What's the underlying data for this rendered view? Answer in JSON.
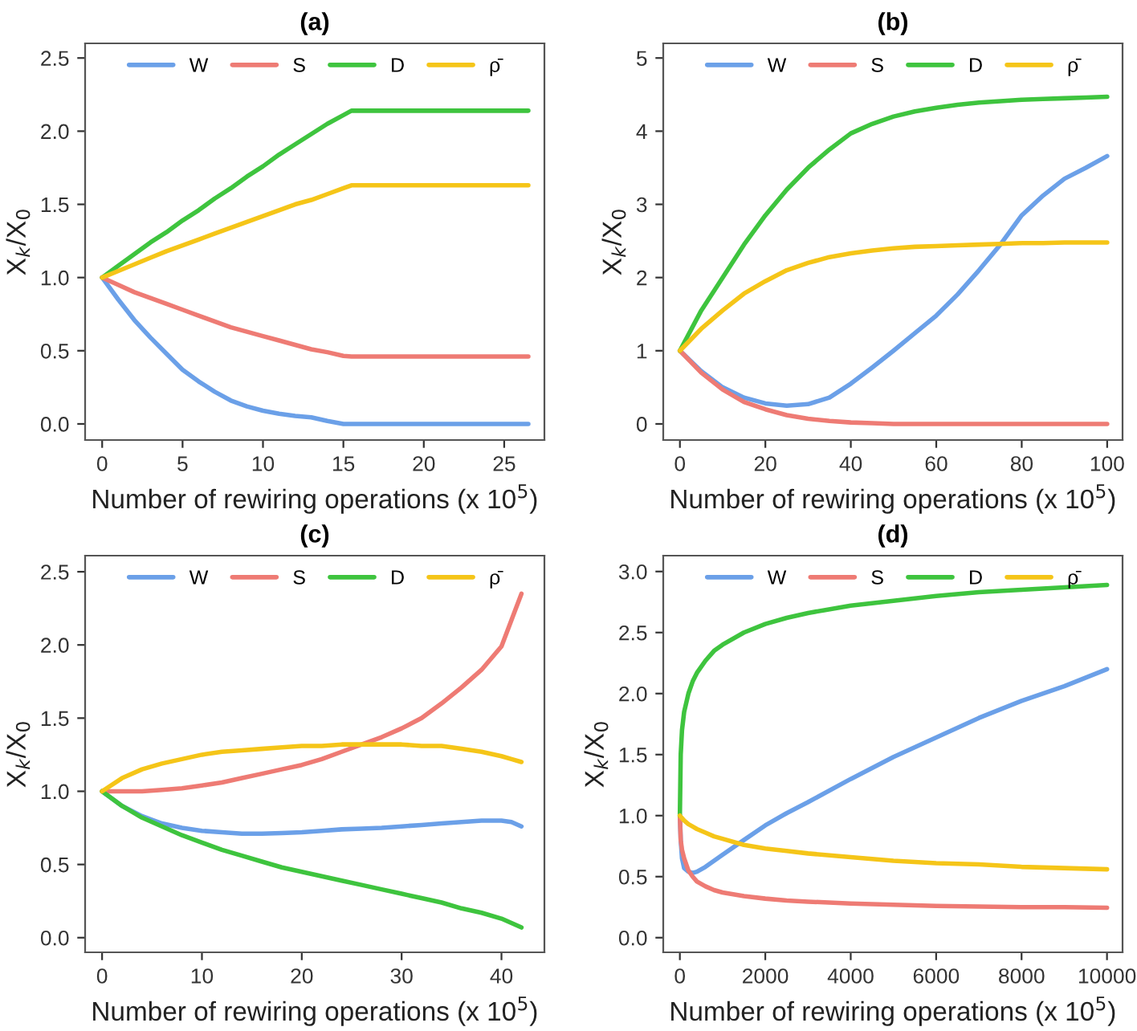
{
  "chart_data": [
    {
      "type": "line",
      "title": "(a)",
      "xlabel": "Number of rewiring operations (x 10$^{5}$)",
      "ylabel": "X$_{k}$/X$_{0}$",
      "legend": "top",
      "grid": false,
      "xlim": [
        -1.06,
        27.5
      ],
      "ylim": [
        -0.11,
        2.6
      ],
      "xticks": [
        0,
        5,
        10,
        15,
        20,
        25
      ],
      "yticks": [
        {
          "value": 0,
          "label": "0.0"
        },
        {
          "value": 0.5,
          "label": "0.5"
        },
        {
          "value": 1,
          "label": "1.0"
        },
        {
          "value": 1.5,
          "label": "1.5"
        },
        {
          "value": 2,
          "label": "2.0"
        },
        {
          "value": 2.5,
          "label": "2.5"
        }
      ],
      "x": [
        0,
        1,
        2,
        3,
        4,
        5,
        6,
        7,
        8,
        9,
        10,
        11,
        12,
        13,
        14,
        15,
        15.5,
        20,
        26.5
      ],
      "series": [
        {
          "name": "W",
          "color": "#6ba0e8",
          "values": [
            1,
            0.85,
            0.71,
            0.59,
            0.48,
            0.37,
            0.29,
            0.22,
            0.16,
            0.12,
            0.09,
            0.07,
            0.055,
            0.045,
            0.02,
            0,
            0,
            0,
            0
          ]
        },
        {
          "name": "S",
          "color": "#ee7b74",
          "values": [
            1,
            0.95,
            0.9,
            0.86,
            0.82,
            0.78,
            0.74,
            0.7,
            0.66,
            0.63,
            0.6,
            0.57,
            0.54,
            0.51,
            0.49,
            0.465,
            0.46,
            0.46,
            0.46
          ]
        },
        {
          "name": "D",
          "color": "#3ec43e",
          "values": [
            1,
            1.08,
            1.16,
            1.24,
            1.31,
            1.39,
            1.46,
            1.54,
            1.61,
            1.69,
            1.76,
            1.84,
            1.91,
            1.98,
            2.05,
            2.11,
            2.14,
            2.14,
            2.14
          ]
        },
        {
          "name": "ρ̄",
          "color": "#f5c518",
          "values": [
            1,
            1.045,
            1.09,
            1.135,
            1.18,
            1.22,
            1.26,
            1.3,
            1.34,
            1.38,
            1.42,
            1.46,
            1.5,
            1.53,
            1.57,
            1.61,
            1.63,
            1.63,
            1.63
          ]
        }
      ]
    },
    {
      "type": "line",
      "title": "(b)",
      "xlabel": "Number of rewiring operations (x 10$^{5}$)",
      "ylabel": "X$_{k}$/X$_{0}$",
      "legend": "top",
      "grid": false,
      "xlim": [
        -3.9,
        103.6
      ],
      "ylim": [
        -0.22,
        5.2
      ],
      "xticks": [
        0,
        20,
        40,
        60,
        80,
        100
      ],
      "yticks": [
        0,
        1,
        2,
        3,
        4,
        5
      ],
      "x": [
        0,
        5,
        10,
        15,
        20,
        25,
        30,
        35,
        40,
        45,
        50,
        55,
        60,
        65,
        70,
        75,
        80,
        85,
        90,
        95,
        100
      ],
      "series": [
        {
          "name": "W",
          "color": "#6ba0e8",
          "values": [
            1,
            0.72,
            0.5,
            0.36,
            0.28,
            0.25,
            0.27,
            0.36,
            0.55,
            0.77,
            1.0,
            1.24,
            1.48,
            1.77,
            2.1,
            2.45,
            2.85,
            3.12,
            3.35,
            3.5,
            3.66
          ]
        },
        {
          "name": "S",
          "color": "#ee7b74",
          "values": [
            1,
            0.7,
            0.47,
            0.3,
            0.2,
            0.12,
            0.07,
            0.04,
            0.02,
            0.01,
            0,
            0,
            0,
            0,
            0,
            0,
            0,
            0,
            0,
            0,
            0
          ]
        },
        {
          "name": "D",
          "color": "#3ec43e",
          "values": [
            1,
            1.55,
            2.0,
            2.45,
            2.85,
            3.2,
            3.5,
            3.75,
            3.97,
            4.1,
            4.2,
            4.27,
            4.32,
            4.36,
            4.39,
            4.41,
            4.43,
            4.44,
            4.45,
            4.46,
            4.47
          ]
        },
        {
          "name": "ρ̄",
          "color": "#f5c518",
          "values": [
            1,
            1.3,
            1.55,
            1.78,
            1.95,
            2.1,
            2.2,
            2.28,
            2.33,
            2.37,
            2.4,
            2.42,
            2.43,
            2.44,
            2.45,
            2.46,
            2.47,
            2.47,
            2.48,
            2.48,
            2.48
          ]
        }
      ]
    },
    {
      "type": "line",
      "title": "(c)",
      "xlabel": "Number of rewiring operations (x 10$^{5}$)",
      "ylabel": "X$_{k}$/X$_{0}$",
      "legend": "top",
      "grid": false,
      "xlim": [
        -1.7,
        44.3
      ],
      "ylim": [
        -0.1,
        2.61
      ],
      "xticks": [
        0,
        10,
        20,
        30,
        40
      ],
      "yticks": [
        {
          "value": 0,
          "label": "0.0"
        },
        {
          "value": 0.5,
          "label": "0.5"
        },
        {
          "value": 1,
          "label": "1.0"
        },
        {
          "value": 1.5,
          "label": "1.5"
        },
        {
          "value": 2,
          "label": "2.0"
        },
        {
          "value": 2.5,
          "label": "2.5"
        }
      ],
      "x": [
        0,
        2,
        4,
        6,
        8,
        10,
        12,
        14,
        16,
        18,
        20,
        22,
        24,
        26,
        28,
        30,
        32,
        34,
        36,
        38,
        40,
        41,
        42
      ],
      "series": [
        {
          "name": "W",
          "color": "#6ba0e8",
          "values": [
            1,
            0.9,
            0.83,
            0.78,
            0.75,
            0.73,
            0.72,
            0.71,
            0.71,
            0.715,
            0.72,
            0.73,
            0.74,
            0.745,
            0.75,
            0.76,
            0.77,
            0.78,
            0.79,
            0.8,
            0.8,
            0.79,
            0.76
          ]
        },
        {
          "name": "S",
          "color": "#ee7b74",
          "values": [
            1,
            1,
            1,
            1.01,
            1.02,
            1.04,
            1.06,
            1.09,
            1.12,
            1.15,
            1.18,
            1.22,
            1.27,
            1.32,
            1.37,
            1.43,
            1.5,
            1.6,
            1.71,
            1.83,
            1.99,
            2.17,
            2.35
          ]
        },
        {
          "name": "D",
          "color": "#3ec43e",
          "values": [
            1,
            0.9,
            0.82,
            0.76,
            0.7,
            0.65,
            0.6,
            0.56,
            0.52,
            0.48,
            0.45,
            0.42,
            0.39,
            0.36,
            0.33,
            0.3,
            0.27,
            0.24,
            0.2,
            0.17,
            0.13,
            0.1,
            0.07
          ]
        },
        {
          "name": "ρ̄",
          "color": "#f5c518",
          "values": [
            1,
            1.09,
            1.15,
            1.19,
            1.22,
            1.25,
            1.27,
            1.28,
            1.29,
            1.3,
            1.31,
            1.31,
            1.32,
            1.32,
            1.32,
            1.32,
            1.31,
            1.31,
            1.29,
            1.27,
            1.24,
            1.22,
            1.2
          ]
        }
      ]
    },
    {
      "type": "line",
      "title": "(d)",
      "xlabel": "Number of rewiring operations (x 10$^{5}$)",
      "ylabel": "X$_{k}$/X$_{0}$",
      "legend": "top",
      "grid": false,
      "xlim": [
        -389,
        10364
      ],
      "ylim": [
        -0.12,
        3.13
      ],
      "xticks": [
        0,
        2000,
        4000,
        6000,
        8000,
        10000
      ],
      "yticks": [
        {
          "value": 0,
          "label": "0.0"
        },
        {
          "value": 0.5,
          "label": "0.5"
        },
        {
          "value": 1,
          "label": "1.0"
        },
        {
          "value": 1.5,
          "label": "1.5"
        },
        {
          "value": 2,
          "label": "2.0"
        },
        {
          "value": 2.5,
          "label": "2.5"
        },
        {
          "value": 3,
          "label": "3.0"
        }
      ],
      "x": [
        0,
        20,
        50,
        100,
        200,
        300,
        400,
        600,
        800,
        1000,
        1500,
        2000,
        2500,
        3000,
        4000,
        5000,
        6000,
        7000,
        8000,
        9000,
        10000
      ],
      "series": [
        {
          "name": "W",
          "color": "#6ba0e8",
          "values": [
            1,
            0.8,
            0.65,
            0.57,
            0.54,
            0.53,
            0.54,
            0.58,
            0.63,
            0.68,
            0.8,
            0.92,
            1.02,
            1.11,
            1.3,
            1.48,
            1.64,
            1.8,
            1.94,
            2.06,
            2.2
          ]
        },
        {
          "name": "S",
          "color": "#ee7b74",
          "values": [
            1,
            0.8,
            0.72,
            0.65,
            0.55,
            0.5,
            0.46,
            0.42,
            0.39,
            0.37,
            0.34,
            0.32,
            0.305,
            0.295,
            0.28,
            0.27,
            0.26,
            0.255,
            0.25,
            0.25,
            0.245
          ]
        },
        {
          "name": "D",
          "color": "#3ec43e",
          "values": [
            1,
            1.5,
            1.7,
            1.85,
            2.0,
            2.1,
            2.17,
            2.27,
            2.35,
            2.4,
            2.5,
            2.57,
            2.62,
            2.66,
            2.72,
            2.76,
            2.8,
            2.83,
            2.85,
            2.87,
            2.89
          ]
        },
        {
          "name": "ρ̄",
          "color": "#f5c518",
          "values": [
            1,
            0.99,
            0.98,
            0.96,
            0.93,
            0.91,
            0.89,
            0.86,
            0.83,
            0.81,
            0.76,
            0.73,
            0.71,
            0.69,
            0.66,
            0.63,
            0.61,
            0.6,
            0.58,
            0.57,
            0.56
          ]
        }
      ]
    }
  ]
}
